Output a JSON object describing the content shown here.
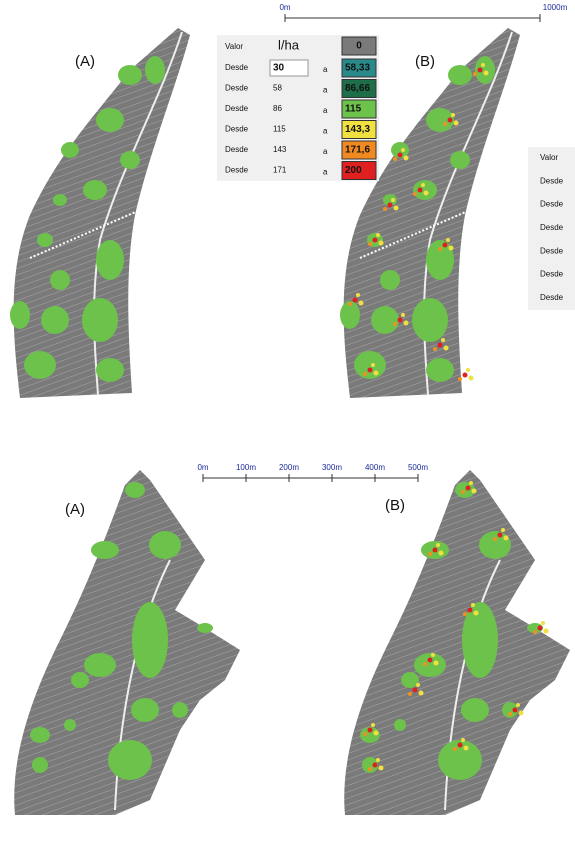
{
  "top": {
    "labels": [
      "(A)",
      "(B)"
    ],
    "scale": [
      "0m",
      "1000m"
    ],
    "legend": {
      "header": [
        "Valor",
        "l/ha",
        "0"
      ],
      "rows": [
        [
          "Desde",
          "30",
          "a",
          "58,33"
        ],
        [
          "Desde",
          "58",
          "a",
          "86,66"
        ],
        [
          "Desde",
          "86",
          "a",
          "115"
        ],
        [
          "Desde",
          "115",
          "a",
          "143,3"
        ],
        [
          "Desde",
          "143",
          "a",
          "171,6"
        ],
        [
          "Desde",
          "171",
          "a",
          "200"
        ]
      ]
    },
    "partial_legend": [
      "Valor",
      "Desde",
      "Desde",
      "Desde",
      "Desde",
      "Desde",
      "Desde"
    ]
  },
  "bottom": {
    "labels": [
      "(A)",
      "(B)"
    ],
    "scale": [
      "0m",
      "100m",
      "200m",
      "300m",
      "400m",
      "500m"
    ]
  }
}
